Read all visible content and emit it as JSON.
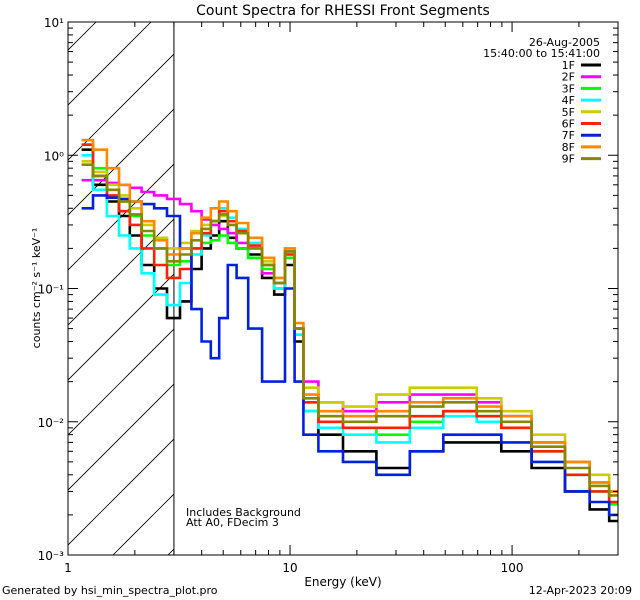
{
  "chart_data": {
    "type": "line",
    "title": "Count Spectra for RHESSI Front Segments",
    "xlabel": "Energy (keV)",
    "ylabel": "counts cm⁻² s⁻¹ keV⁻¹",
    "xscale": "log",
    "yscale": "log",
    "xlim": [
      1,
      300
    ],
    "ylim": [
      0.001,
      10
    ],
    "x_ticks": [
      {
        "value": 1,
        "label": "1"
      },
      {
        "value": 10,
        "label": "10"
      },
      {
        "value": 100,
        "label": "100"
      }
    ],
    "y_ticks": [
      {
        "value": 0.001,
        "label": "10⁻³"
      },
      {
        "value": 0.01,
        "label": "10⁻²"
      },
      {
        "value": 0.1,
        "label": "10⁻¹"
      },
      {
        "value": 1,
        "label": "10⁰"
      },
      {
        "value": 10,
        "label": "10¹"
      }
    ],
    "info": [
      "26-Aug-2005",
      "15:40:00 to 15:41:00"
    ],
    "notes": [
      "Includes Background",
      "Att A0, FDecim 3"
    ],
    "excluded_region": {
      "from": 1,
      "to": 3
    },
    "legend_position": "top-right",
    "series": [
      {
        "name": "1F",
        "color": "#000000",
        "x": [
          1.2,
          1.4,
          1.6,
          1.8,
          2.0,
          2.3,
          2.6,
          3.0,
          3.4,
          3.8,
          4.2,
          4.6,
          5.0,
          5.5,
          6.0,
          7.0,
          8.0,
          9.0,
          10.0,
          11.0,
          12.0,
          15.0,
          20.0,
          30.0,
          40.0,
          60.0,
          80.0,
          100.0,
          150.0,
          200.0,
          250.0,
          300.0
        ],
        "y": [
          1.1,
          0.6,
          0.45,
          0.35,
          0.25,
          0.15,
          0.1,
          0.06,
          0.08,
          0.14,
          0.2,
          0.25,
          0.32,
          0.24,
          0.2,
          0.18,
          0.12,
          0.09,
          0.15,
          0.04,
          0.012,
          0.008,
          0.006,
          0.0045,
          0.006,
          0.007,
          0.007,
          0.006,
          0.0045,
          0.003,
          0.0022,
          0.0018
        ]
      },
      {
        "name": "2F",
        "color": "#ff00ff",
        "x": [
          1.2,
          1.4,
          1.6,
          1.8,
          2.0,
          2.3,
          2.6,
          3.0,
          3.4,
          3.8,
          4.2,
          4.6,
          5.0,
          5.5,
          6.0,
          7.0,
          8.0,
          9.0,
          10.0,
          11.0,
          12.0,
          15.0,
          20.0,
          30.0,
          40.0,
          60.0,
          80.0,
          100.0,
          150.0,
          200.0,
          250.0,
          300.0
        ],
        "y": [
          0.65,
          0.65,
          0.62,
          0.6,
          0.57,
          0.53,
          0.5,
          0.47,
          0.43,
          0.38,
          0.33,
          0.3,
          0.28,
          0.26,
          0.22,
          0.17,
          0.13,
          0.1,
          0.19,
          0.05,
          0.02,
          0.014,
          0.012,
          0.014,
          0.016,
          0.016,
          0.014,
          0.011,
          0.007,
          0.005,
          0.0035,
          0.003
        ]
      },
      {
        "name": "3F",
        "color": "#00ff00",
        "x": [
          1.2,
          1.4,
          1.6,
          1.8,
          2.0,
          2.3,
          2.6,
          3.0,
          3.4,
          3.8,
          4.2,
          4.6,
          5.0,
          5.5,
          6.0,
          7.0,
          8.0,
          9.0,
          10.0,
          11.0,
          12.0,
          15.0,
          20.0,
          30.0,
          40.0,
          60.0,
          80.0,
          100.0,
          150.0,
          200.0,
          250.0,
          300.0
        ],
        "y": [
          1.2,
          0.8,
          0.55,
          0.45,
          0.35,
          0.25,
          0.2,
          0.15,
          0.16,
          0.2,
          0.22,
          0.23,
          0.25,
          0.22,
          0.2,
          0.17,
          0.14,
          0.11,
          0.17,
          0.045,
          0.014,
          0.01,
          0.009,
          0.008,
          0.01,
          0.012,
          0.011,
          0.009,
          0.006,
          0.004,
          0.003,
          0.0024
        ]
      },
      {
        "name": "4F",
        "color": "#00ffff",
        "x": [
          1.2,
          1.4,
          1.6,
          1.8,
          2.0,
          2.3,
          2.6,
          3.0,
          3.4,
          3.8,
          4.2,
          4.6,
          5.0,
          5.5,
          6.0,
          7.0,
          8.0,
          9.0,
          10.0,
          11.0,
          12.0,
          15.0,
          20.0,
          30.0,
          40.0,
          60.0,
          80.0,
          100.0,
          150.0,
          200.0,
          250.0,
          300.0
        ],
        "y": [
          1.0,
          0.55,
          0.35,
          0.25,
          0.2,
          0.13,
          0.09,
          0.075,
          0.11,
          0.18,
          0.25,
          0.32,
          0.4,
          0.34,
          0.28,
          0.22,
          0.15,
          0.1,
          0.18,
          0.045,
          0.012,
          0.009,
          0.008,
          0.007,
          0.009,
          0.011,
          0.01,
          0.009,
          0.006,
          0.004,
          0.003,
          0.0025
        ]
      },
      {
        "name": "5F",
        "color": "#cccc00",
        "x": [
          1.2,
          1.4,
          1.6,
          1.8,
          2.0,
          2.3,
          2.6,
          3.0,
          3.4,
          3.8,
          4.2,
          4.6,
          5.0,
          5.5,
          6.0,
          7.0,
          8.0,
          9.0,
          10.0,
          11.0,
          12.0,
          15.0,
          20.0,
          30.0,
          40.0,
          60.0,
          80.0,
          100.0,
          150.0,
          200.0,
          250.0,
          300.0
        ],
        "y": [
          0.9,
          0.75,
          0.6,
          0.5,
          0.4,
          0.3,
          0.24,
          0.2,
          0.22,
          0.27,
          0.3,
          0.32,
          0.35,
          0.3,
          0.26,
          0.2,
          0.16,
          0.12,
          0.2,
          0.05,
          0.018,
          0.014,
          0.013,
          0.016,
          0.018,
          0.018,
          0.015,
          0.012,
          0.008,
          0.005,
          0.004,
          0.003
        ]
      },
      {
        "name": "6F",
        "color": "#ff2200",
        "x": [
          1.2,
          1.4,
          1.6,
          1.8,
          2.0,
          2.3,
          2.6,
          3.0,
          3.4,
          3.8,
          4.2,
          4.6,
          5.0,
          5.5,
          6.0,
          7.0,
          8.0,
          9.0,
          10.0,
          11.0,
          12.0,
          15.0,
          20.0,
          30.0,
          40.0,
          60.0,
          80.0,
          100.0,
          150.0,
          200.0,
          250.0,
          300.0
        ],
        "y": [
          1.2,
          0.7,
          0.5,
          0.38,
          0.3,
          0.2,
          0.15,
          0.12,
          0.14,
          0.2,
          0.26,
          0.32,
          0.38,
          0.32,
          0.27,
          0.21,
          0.15,
          0.11,
          0.18,
          0.05,
          0.014,
          0.01,
          0.009,
          0.009,
          0.011,
          0.012,
          0.011,
          0.009,
          0.006,
          0.004,
          0.003,
          0.0025
        ]
      },
      {
        "name": "7F",
        "color": "#0022dd",
        "x": [
          1.2,
          1.4,
          1.6,
          1.8,
          2.0,
          2.3,
          2.6,
          3.0,
          3.4,
          3.8,
          4.2,
          4.6,
          5.0,
          5.5,
          6.0,
          7.0,
          8.0,
          9.0,
          10.0,
          11.0,
          12.0,
          15.0,
          20.0,
          30.0,
          40.0,
          60.0,
          80.0,
          100.0,
          150.0,
          200.0,
          250.0,
          300.0
        ],
        "y": [
          0.4,
          0.5,
          0.48,
          0.47,
          0.45,
          0.43,
          0.4,
          0.35,
          0.2,
          0.07,
          0.04,
          0.03,
          0.06,
          0.15,
          0.12,
          0.05,
          0.02,
          0.02,
          0.1,
          0.02,
          0.008,
          0.006,
          0.005,
          0.004,
          0.006,
          0.008,
          0.008,
          0.007,
          0.005,
          0.003,
          0.0025,
          0.002
        ]
      },
      {
        "name": "8F",
        "color": "#ff8800",
        "x": [
          1.2,
          1.4,
          1.6,
          1.8,
          2.0,
          2.3,
          2.6,
          3.0,
          3.4,
          3.8,
          4.2,
          4.6,
          5.0,
          5.5,
          6.0,
          7.0,
          8.0,
          9.0,
          10.0,
          11.0,
          12.0,
          15.0,
          20.0,
          30.0,
          40.0,
          60.0,
          80.0,
          100.0,
          150.0,
          200.0,
          250.0,
          300.0
        ],
        "y": [
          1.3,
          1.1,
          0.8,
          0.6,
          0.45,
          0.32,
          0.23,
          0.18,
          0.2,
          0.26,
          0.34,
          0.4,
          0.45,
          0.38,
          0.31,
          0.24,
          0.17,
          0.12,
          0.2,
          0.055,
          0.016,
          0.012,
          0.011,
          0.012,
          0.014,
          0.015,
          0.013,
          0.011,
          0.007,
          0.005,
          0.0035,
          0.003
        ]
      },
      {
        "name": "9F",
        "color": "#888800",
        "x": [
          1.2,
          1.4,
          1.6,
          1.8,
          2.0,
          2.3,
          2.6,
          3.0,
          3.4,
          3.8,
          4.2,
          4.6,
          5.0,
          5.5,
          6.0,
          7.0,
          8.0,
          9.0,
          10.0,
          11.0,
          12.0,
          15.0,
          20.0,
          30.0,
          40.0,
          60.0,
          80.0,
          100.0,
          150.0,
          200.0,
          250.0,
          300.0
        ],
        "y": [
          0.85,
          0.7,
          0.55,
          0.45,
          0.36,
          0.27,
          0.2,
          0.16,
          0.18,
          0.23,
          0.28,
          0.32,
          0.36,
          0.3,
          0.26,
          0.2,
          0.15,
          0.11,
          0.19,
          0.05,
          0.015,
          0.011,
          0.01,
          0.011,
          0.013,
          0.014,
          0.012,
          0.01,
          0.0065,
          0.0045,
          0.0033,
          0.0028
        ]
      }
    ]
  },
  "footer": {
    "left": "Generated by hsi_min_spectra_plot.pro",
    "right": "12-Apr-2023 20:09"
  }
}
